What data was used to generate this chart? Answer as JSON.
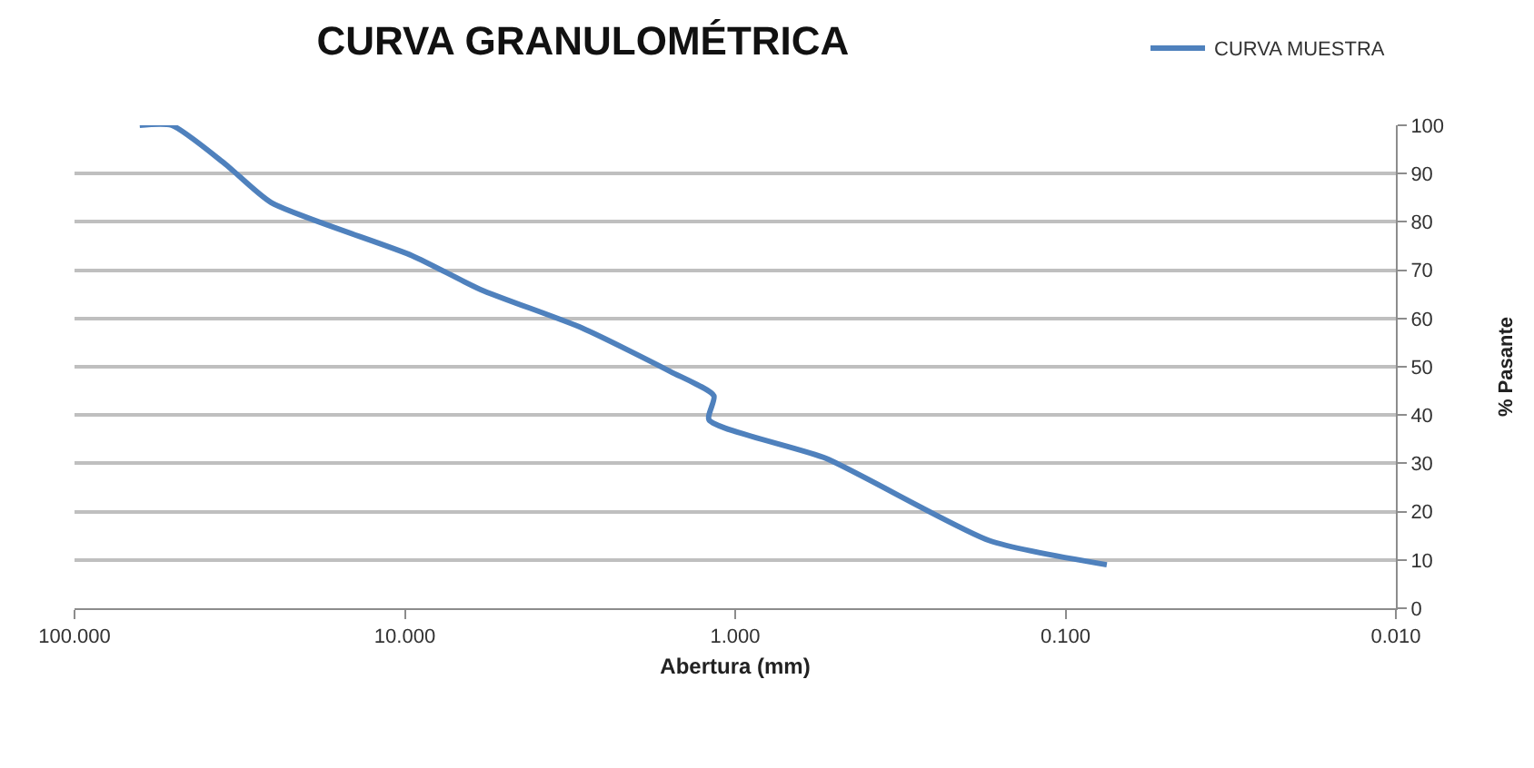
{
  "chart_data": {
    "type": "line",
    "title": "CURVA GRANULOMÉTRICA",
    "xlabel": "Abertura (mm)",
    "ylabel": "% Pasante",
    "log": "x",
    "grid": "y",
    "legend": "top right",
    "marker": "none",
    "line_style": "solid",
    "xlim": [
      100,
      0.01
    ],
    "xticks": [
      {
        "value": 100,
        "label": "100.000"
      },
      {
        "value": 10,
        "label": "10.000"
      },
      {
        "value": 1,
        "label": "1.000"
      },
      {
        "value": 0.1,
        "label": "0.100"
      },
      {
        "value": 0.01,
        "label": "0.010"
      }
    ],
    "ylim": [
      0,
      100
    ],
    "yticks": [
      0,
      10,
      20,
      30,
      40,
      50,
      60,
      70,
      80,
      90,
      100
    ],
    "series": [
      {
        "name": "CURVA MUESTRA",
        "color": "#4f81bd",
        "x": [
          63.5,
          50.8,
          35,
          25.4,
          9.5,
          5.9,
          2.9,
          1.57,
          1.16,
          1.2,
          0.53,
          0.17,
          0.075
        ],
        "values": [
          100,
          100,
          92,
          84,
          73,
          66,
          58,
          49,
          44,
          39,
          31,
          14,
          9
        ]
      }
    ]
  }
}
